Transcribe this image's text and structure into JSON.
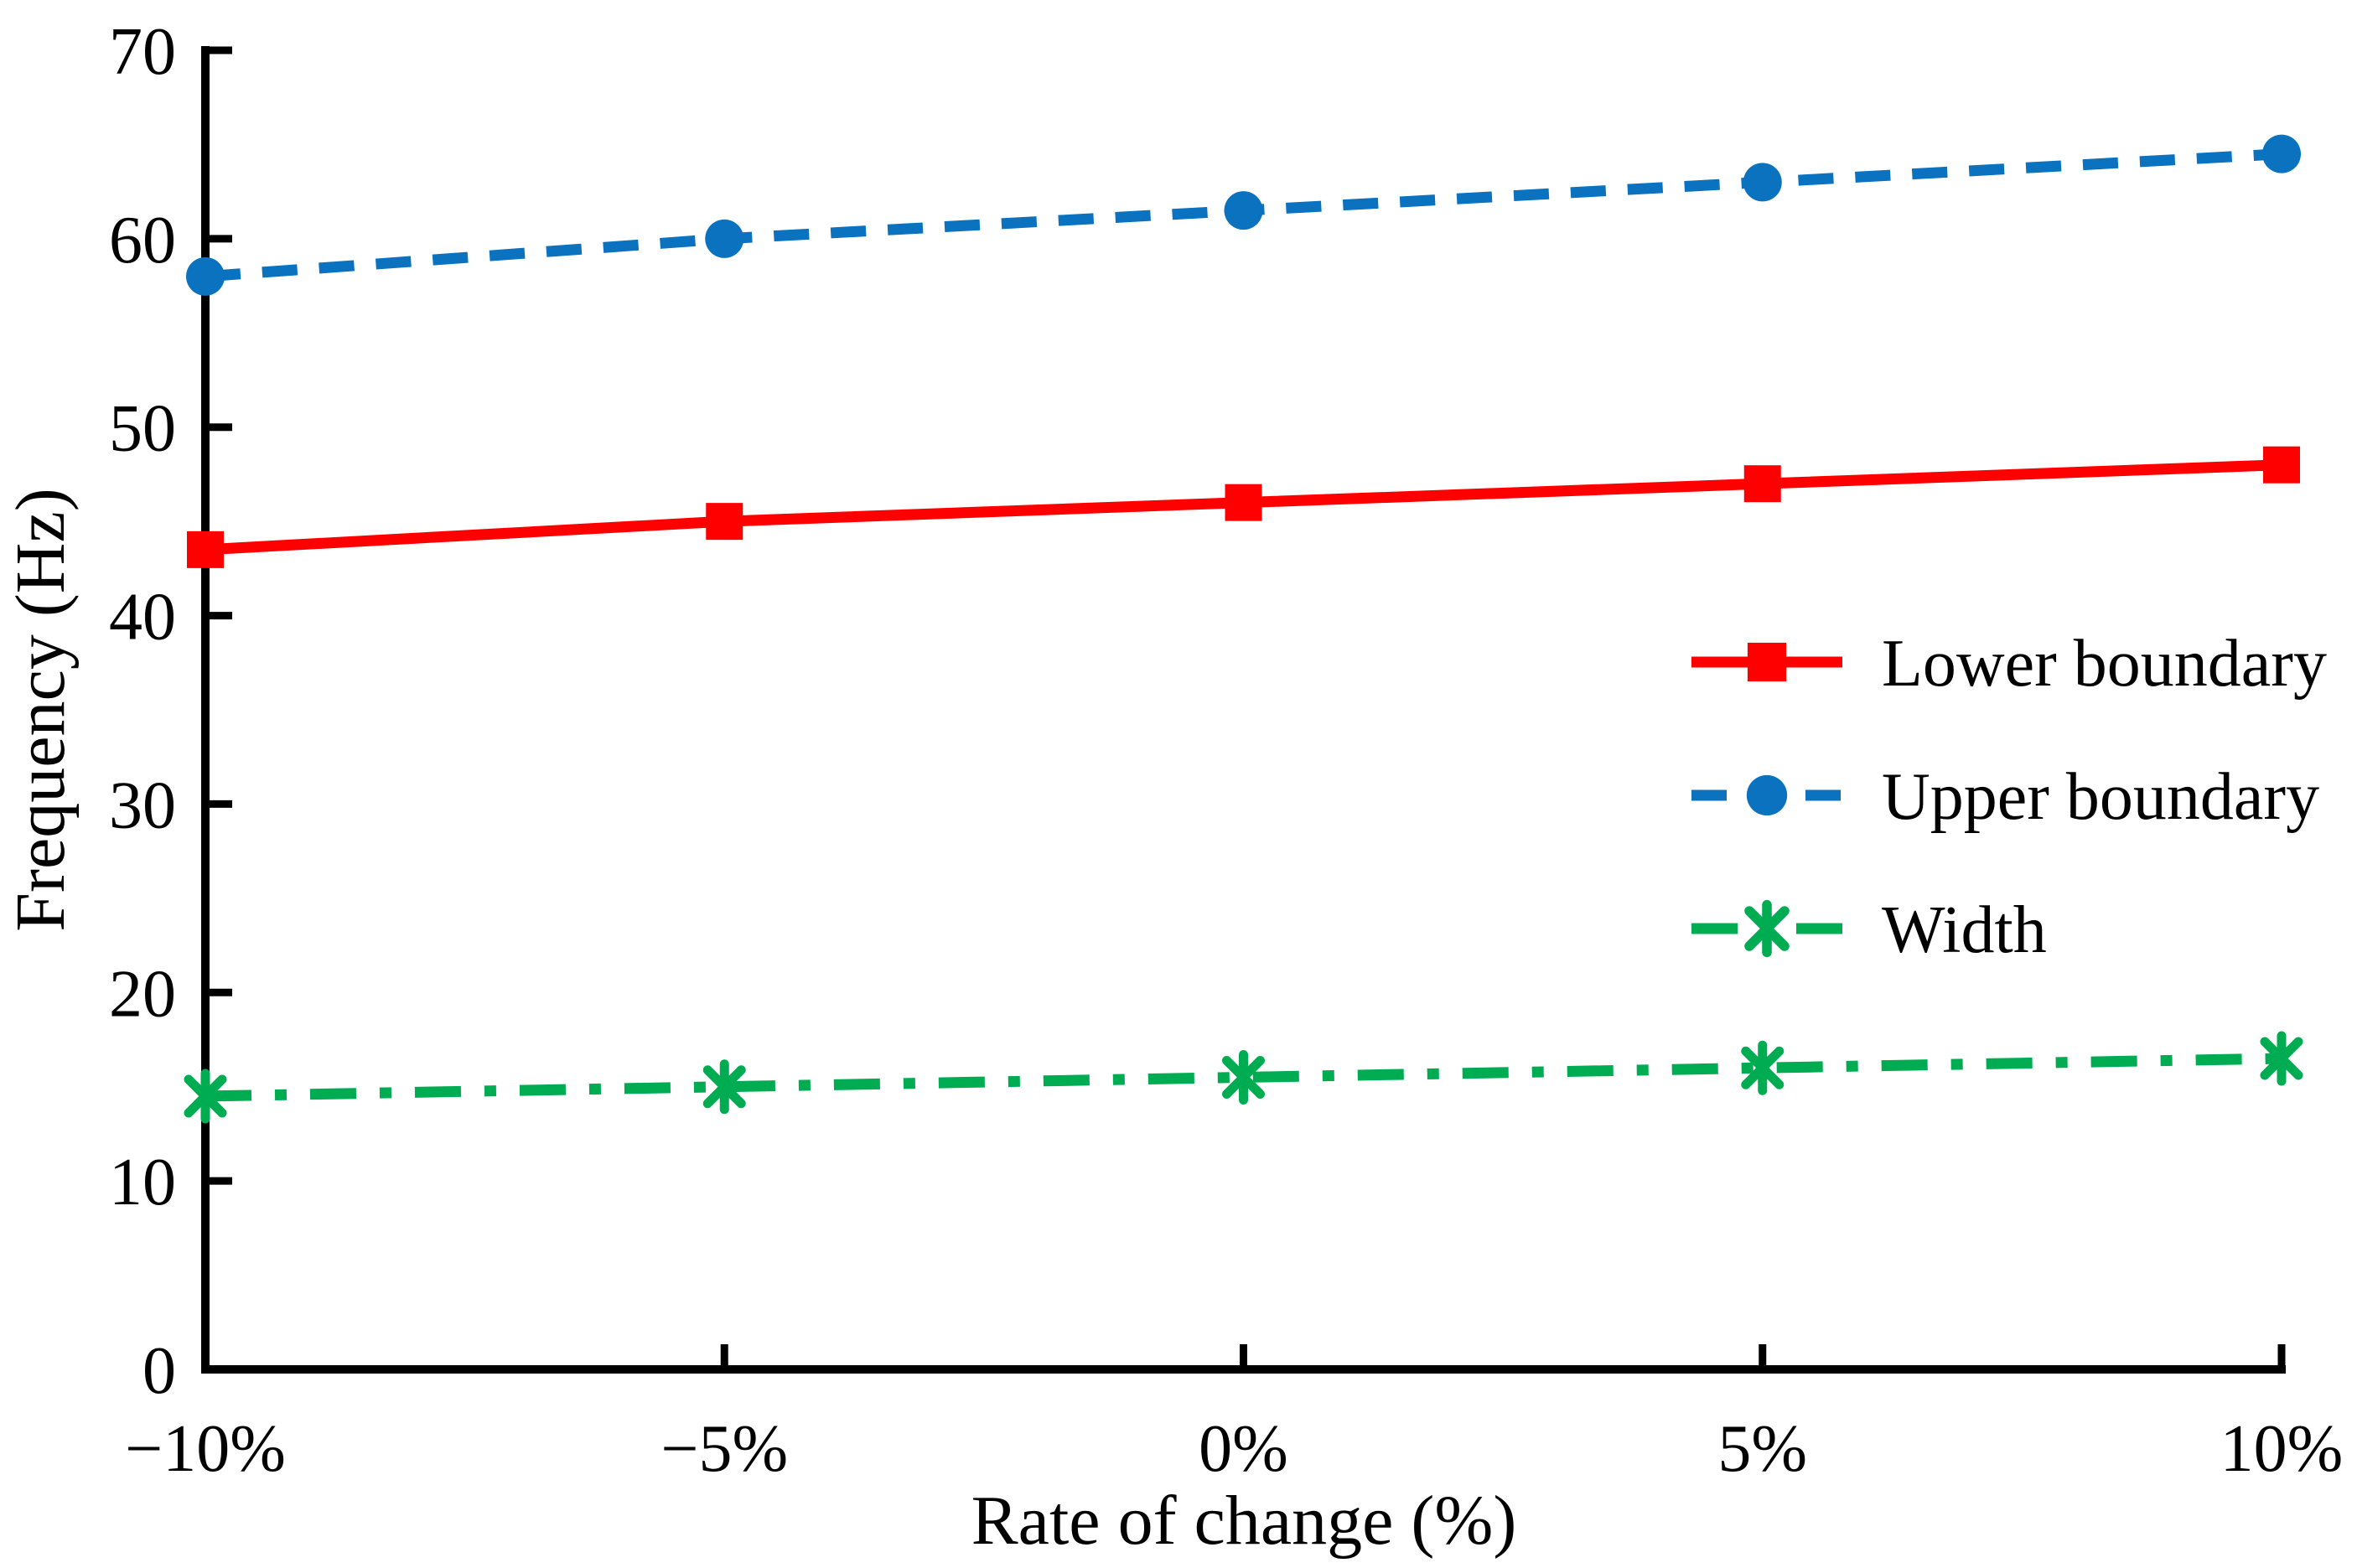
{
  "chart_data": {
    "type": "line",
    "title": "",
    "xlabel": "Rate of change (%)",
    "ylabel": "Frequency (Hz)",
    "categories": [
      "−10%",
      "−5%",
      "0%",
      "5%",
      "10%"
    ],
    "ylim": [
      0,
      70
    ],
    "y_ticks": [
      0,
      10,
      20,
      30,
      40,
      50,
      60,
      70
    ],
    "y_tick_labels": [
      "0",
      "10",
      "20",
      "30",
      "40",
      "50",
      "60",
      "70"
    ],
    "grid": false,
    "legend_position": "middle-right",
    "series": [
      {
        "name": "Lower boundary",
        "color": "#FF0000",
        "line_style": "solid",
        "marker": "square",
        "values": [
          43.5,
          45,
          46,
          47,
          48
        ]
      },
      {
        "name": "Upper boundary",
        "color": "#0A72BE",
        "line_style": "dashed",
        "marker": "circle",
        "values": [
          58,
          60,
          61.5,
          63,
          64.5
        ]
      },
      {
        "name": "Width",
        "color": "#00AC51",
        "line_style": "dash-dot",
        "marker": "asterisk",
        "values": [
          14.5,
          15,
          15.5,
          16,
          16.5
        ]
      }
    ]
  },
  "colors": {
    "axis": "#000000",
    "background": "#FFFFFF"
  }
}
